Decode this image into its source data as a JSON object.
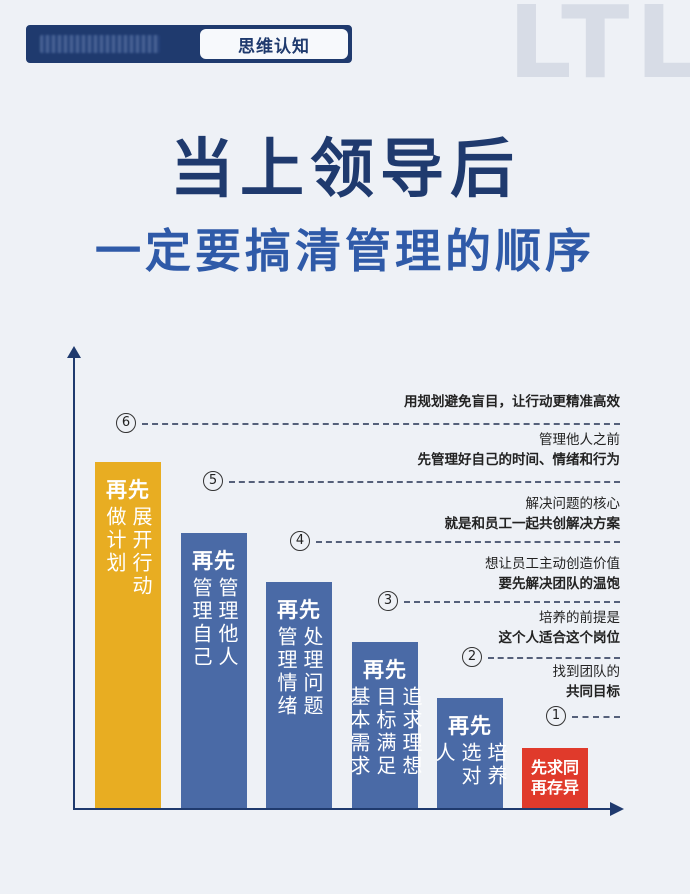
{
  "header": {
    "tag": "思维认知"
  },
  "watermark": "LTL",
  "title": {
    "main": "当上领导后",
    "sub": "一定要搞清管理的顺序"
  },
  "steps": [
    {
      "num": "1",
      "bar_head": "",
      "bar_text": "先求同\n再存异",
      "bar_color": "#e03a2b",
      "note_line1": "找到团队的",
      "note_line2": "共同目标"
    },
    {
      "num": "2",
      "bar_head": "再先",
      "bar_text": "培养选对人",
      "bar_color": "#4a6aa6",
      "note_line1": "培养的前提是",
      "note_line2": "这个人适合这个岗位"
    },
    {
      "num": "3",
      "bar_head": "再先",
      "bar_text": "追求理想目标满足基本需求",
      "bar_color": "#4a6aa6",
      "note_line1": "想让员工主动创造价值",
      "note_line2": "要先解决团队的温饱"
    },
    {
      "num": "4",
      "bar_head": "再先",
      "bar_text": "处理问题管理情绪",
      "bar_color": "#4a6aa6",
      "note_line1": "解决问题的核心",
      "note_line2": "就是和员工一起共创解决方案"
    },
    {
      "num": "5",
      "bar_head": "再先",
      "bar_text": "管理他人管理自己",
      "bar_color": "#4a6aa6",
      "note_line1": "管理他人之前",
      "note_line2": "先管理好自己的时间、情绪和行为"
    },
    {
      "num": "6",
      "bar_head": "再先",
      "bar_text": "展开行动做计划",
      "bar_color": "#e8ad22",
      "note_line1": "",
      "note_line2": "用规划避免盲目，让行动更精准高效"
    }
  ]
}
